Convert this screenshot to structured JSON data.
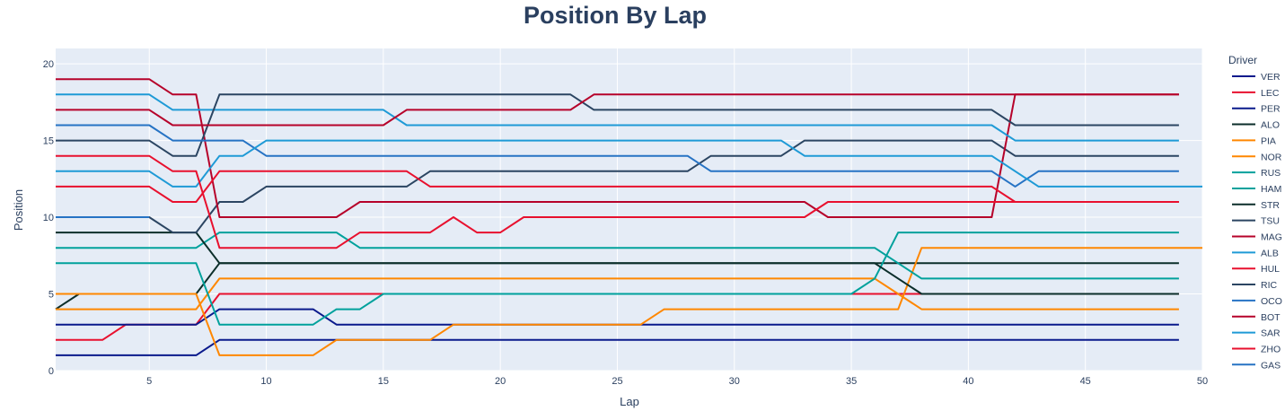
{
  "chart_data": {
    "type": "line",
    "title": "Position By Lap",
    "xlabel": "Lap",
    "ylabel": "Position",
    "xlim": [
      1,
      50
    ],
    "ylim": [
      0,
      21
    ],
    "xticks": [
      5,
      10,
      15,
      20,
      25,
      30,
      35,
      40,
      45,
      50
    ],
    "yticks": [
      0,
      5,
      10,
      15,
      20
    ],
    "grid": true,
    "legend_title": "Driver",
    "legend_placement": "right",
    "series": [
      {
        "name": "VER",
        "color": "#0a1a8c",
        "x": [
          1,
          7,
          8,
          49
        ],
        "y": [
          1,
          1,
          2,
          2
        ]
      },
      {
        "name": "LEC",
        "color": "#e8102e",
        "x": [
          1,
          3,
          4,
          7,
          8,
          49
        ],
        "y": [
          2,
          2,
          3,
          3,
          5,
          5
        ]
      },
      {
        "name": "PER",
        "color": "#0a1a8c",
        "x": [
          1,
          7,
          8,
          12,
          13,
          49
        ],
        "y": [
          3,
          3,
          4,
          4,
          3,
          3
        ]
      },
      {
        "name": "ALO",
        "color": "#0b2e2a",
        "x": [
          1,
          2,
          7,
          8,
          49
        ],
        "y": [
          4,
          5,
          5,
          7,
          7
        ]
      },
      {
        "name": "PIA",
        "color": "#ff8700",
        "x": [
          1,
          7,
          8,
          12,
          13,
          17,
          18,
          26,
          27,
          37,
          38,
          50
        ],
        "y": [
          5,
          5,
          1,
          1,
          2,
          2,
          3,
          3,
          4,
          4,
          8,
          8
        ]
      },
      {
        "name": "NOR",
        "color": "#ff8700",
        "x": [
          1,
          2,
          7,
          8,
          36,
          37,
          38,
          49
        ],
        "y": [
          4,
          4,
          4,
          6,
          6,
          5,
          4,
          4
        ]
      },
      {
        "name": "RUS",
        "color": "#00a19c",
        "x": [
          1,
          7,
          8,
          12,
          13,
          14,
          15,
          35,
          36,
          37,
          49
        ],
        "y": [
          7,
          7,
          3,
          3,
          4,
          4,
          5,
          5,
          6,
          9,
          9
        ]
      },
      {
        "name": "HAM",
        "color": "#00a19c",
        "x": [
          1,
          7,
          8,
          13,
          14,
          36,
          37,
          38,
          49
        ],
        "y": [
          8,
          8,
          9,
          9,
          8,
          8,
          7,
          6,
          6
        ]
      },
      {
        "name": "STR",
        "color": "#0b2e2a",
        "x": [
          1,
          5,
          7,
          8,
          36,
          37,
          38,
          49
        ],
        "y": [
          9,
          9,
          9,
          7,
          7,
          6,
          5,
          5
        ]
      },
      {
        "name": "TSU",
        "color": "#2b4562",
        "x": [
          1,
          5,
          6,
          7,
          8,
          9,
          10,
          16,
          17,
          28,
          29,
          32,
          33,
          41,
          42,
          49
        ],
        "y": [
          10,
          10,
          9,
          9,
          11,
          11,
          12,
          12,
          13,
          13,
          14,
          14,
          15,
          15,
          14,
          14
        ]
      },
      {
        "name": "MAG",
        "color": "#b6022a",
        "x": [
          1,
          5,
          6,
          7,
          8,
          13,
          14,
          33,
          34,
          41,
          42,
          49
        ],
        "y": [
          19,
          19,
          18,
          18,
          10,
          10,
          11,
          11,
          10,
          10,
          18,
          18
        ]
      },
      {
        "name": "ALB",
        "color": "#1e9ad6",
        "x": [
          1,
          5,
          6,
          7,
          8,
          15,
          16,
          41,
          42,
          49
        ],
        "y": [
          18,
          18,
          17,
          17,
          17,
          17,
          16,
          16,
          15,
          15
        ]
      },
      {
        "name": "HUL",
        "color": "#e8102e",
        "x": [
          1,
          5,
          6,
          7,
          8,
          16,
          17,
          41,
          42,
          49
        ],
        "y": [
          12,
          12,
          11,
          11,
          13,
          13,
          12,
          12,
          11,
          11
        ]
      },
      {
        "name": "RIC",
        "color": "#2b4562",
        "x": [
          1,
          5,
          6,
          7,
          8,
          23,
          24,
          41,
          42,
          49
        ],
        "y": [
          15,
          15,
          14,
          14,
          18,
          18,
          17,
          17,
          16,
          16
        ]
      },
      {
        "name": "OCO",
        "color": "#2673c4",
        "x": [
          1,
          5,
          6,
          9,
          10,
          28,
          29,
          41,
          42,
          43,
          49
        ],
        "y": [
          16,
          16,
          15,
          15,
          14,
          14,
          13,
          13,
          12,
          13,
          13
        ]
      },
      {
        "name": "BOT",
        "color": "#b6022a",
        "x": [
          1,
          5,
          6,
          15,
          16,
          23,
          24,
          49
        ],
        "y": [
          17,
          17,
          16,
          16,
          17,
          17,
          18,
          18
        ]
      },
      {
        "name": "SAR",
        "color": "#1e9ad6",
        "x": [
          1,
          5,
          6,
          7,
          8,
          9,
          10,
          32,
          33,
          41,
          43,
          50
        ],
        "y": [
          13,
          13,
          12,
          12,
          14,
          14,
          15,
          15,
          14,
          14,
          12,
          12
        ]
      },
      {
        "name": "ZHO",
        "color": "#e8102e",
        "x": [
          1,
          5,
          6,
          7,
          8,
          12,
          13,
          14,
          17,
          18,
          19,
          20,
          21,
          33,
          34,
          49
        ],
        "y": [
          14,
          14,
          13,
          13,
          8,
          8,
          8,
          9,
          9,
          10,
          9,
          9,
          10,
          10,
          11,
          11
        ]
      },
      {
        "name": "GAS",
        "color": "#2673c4",
        "x": [
          1,
          5
        ],
        "y": [
          10,
          10
        ]
      }
    ]
  }
}
